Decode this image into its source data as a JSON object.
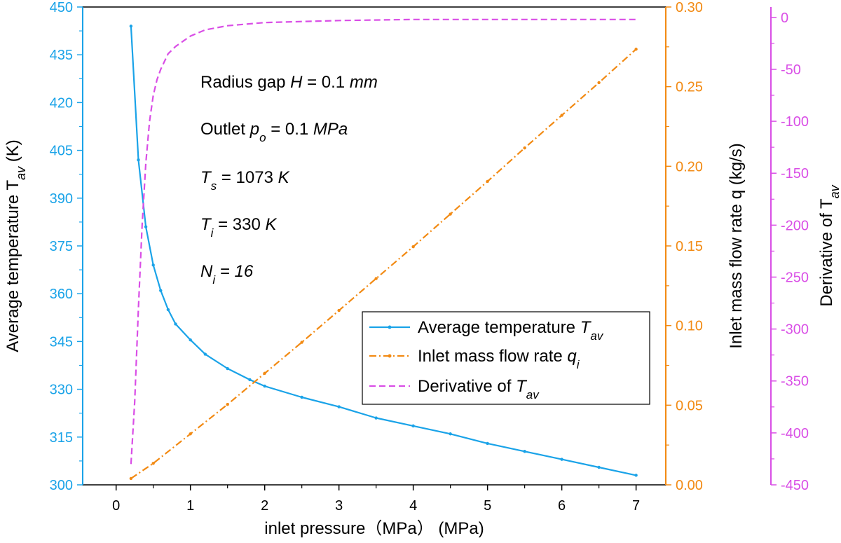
{
  "chart_data": {
    "type": "line",
    "xlabel": "inlet pressure（MPa） (MPa)",
    "x_ticks": [
      "0",
      "1",
      "2",
      "3",
      "4",
      "5",
      "6",
      "7"
    ],
    "xlim": [
      -0.45,
      7.4
    ],
    "y_axes": [
      {
        "id": "left",
        "label": "Average temperature T",
        "label_sub": "av",
        "label_unit": " (K)",
        "ylim": [
          300,
          450
        ],
        "ticks": [
          "300",
          "315",
          "330",
          "345",
          "360",
          "375",
          "390",
          "405",
          "420",
          "435",
          "450"
        ],
        "color": "#1aa3e8"
      },
      {
        "id": "right1",
        "label": "Inlet mass flow rate q (kg/s)",
        "ylim": [
          0,
          0.3
        ],
        "ticks": [
          "0.00",
          "0.05",
          "0.10",
          "0.15",
          "0.20",
          "0.25",
          "0.30"
        ],
        "color": "#f28a13"
      },
      {
        "id": "right2",
        "label": "Derivative of T",
        "label_sub": "av",
        "ylim": [
          -450,
          10
        ],
        "ticks": [
          "-450",
          "-400",
          "-350",
          "-300",
          "-250",
          "-200",
          "-150",
          "-100",
          "-50",
          "0"
        ],
        "color": "#d94ee6"
      }
    ],
    "series": [
      {
        "name": "Average temperature T",
        "name_sub": "av",
        "axis": "left",
        "color": "#1aa3e8",
        "style": "solid-dots",
        "x": [
          0.2,
          0.3,
          0.4,
          0.5,
          0.6,
          0.7,
          0.8,
          1.0,
          1.2,
          1.5,
          1.8,
          2.0,
          2.5,
          3.0,
          3.5,
          4.0,
          4.5,
          5.0,
          5.5,
          6.0,
          6.5,
          7.0
        ],
        "values": [
          444,
          402,
          381,
          369,
          361,
          355,
          350.5,
          345.5,
          341,
          336.5,
          333,
          331,
          327.5,
          324.5,
          321,
          318.5,
          316,
          313,
          310.5,
          308,
          305.5,
          303
        ]
      },
      {
        "name": "Inlet mass flow rate q",
        "name_sub": "i",
        "axis": "right1",
        "color": "#f28a13",
        "style": "dash-dot",
        "x": [
          0.2,
          0.5,
          1.0,
          1.5,
          2.0,
          2.5,
          3.0,
          3.5,
          4.0,
          4.5,
          5.0,
          5.5,
          6.0,
          6.5,
          7.0
        ],
        "values": [
          0.004,
          0.0135,
          0.032,
          0.0505,
          0.07,
          0.0895,
          0.1095,
          0.1295,
          0.1495,
          0.17,
          0.1905,
          0.2115,
          0.232,
          0.2525,
          0.2735
        ]
      },
      {
        "name": "Derivative of T",
        "name_sub": "av",
        "axis": "right2",
        "color": "#d94ee6",
        "style": "dashed",
        "x": [
          0.2,
          0.25,
          0.3,
          0.35,
          0.4,
          0.45,
          0.5,
          0.55,
          0.6,
          0.7,
          0.8,
          1.0,
          1.2,
          1.5,
          2.0,
          3.0,
          4.0,
          5.0,
          6.0,
          7.0
        ],
        "values": [
          -430,
          -370,
          -280,
          -200,
          -140,
          -100,
          -75,
          -60,
          -50,
          -35,
          -28,
          -18,
          -12,
          -8,
          -5,
          -3,
          -2,
          -2,
          -2,
          -2
        ]
      }
    ],
    "legend_position": "center-right",
    "annotations": [
      {
        "parts": [
          {
            "t": "Radius gap "
          },
          {
            "t": "H",
            "i": true
          },
          {
            "t": " = 0.1 "
          },
          {
            "t": "mm",
            "i": true
          }
        ]
      },
      {
        "parts": [
          {
            "t": "Outlet "
          },
          {
            "t": "p",
            "i": true
          },
          {
            "t": "o",
            "i": true,
            "sub": true
          },
          {
            "t": " = 0.1 "
          },
          {
            "t": "MPa",
            "i": true
          }
        ]
      },
      {
        "parts": [
          {
            "t": "T",
            "i": true
          },
          {
            "t": "s",
            "i": true,
            "sub": true
          },
          {
            "t": " = 1073 "
          },
          {
            "t": "K",
            "i": true
          }
        ]
      },
      {
        "parts": [
          {
            "t": "T",
            "i": true
          },
          {
            "t": "i",
            "i": true,
            "sub": true
          },
          {
            "t": " = 330 "
          },
          {
            "t": "K",
            "i": true
          }
        ]
      },
      {
        "parts": [
          {
            "t": "N",
            "i": true
          },
          {
            "t": "i",
            "i": true,
            "sub": true
          },
          {
            "t": " = 16",
            "i": true
          }
        ]
      }
    ],
    "grid": false
  }
}
